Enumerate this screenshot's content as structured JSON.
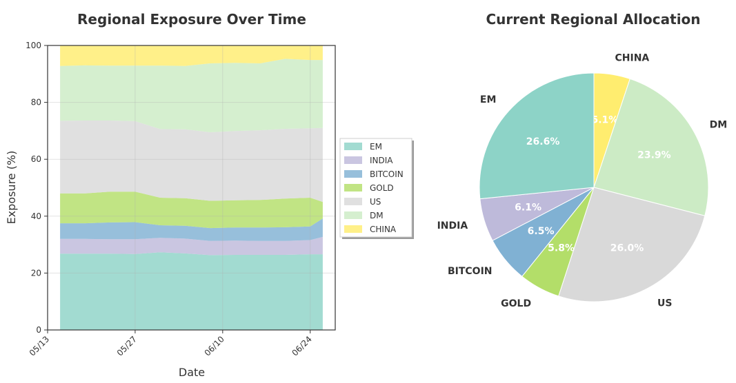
{
  "chart_data": [
    {
      "type": "area",
      "title": "Regional Exposure Over Time",
      "xlabel": "Date",
      "ylabel": "Exposure (%)",
      "ylim": [
        0,
        100
      ],
      "yticks": [
        "0",
        "20",
        "40",
        "60",
        "80",
        "100"
      ],
      "xticks": [
        "05/13",
        "05/27",
        "06/10",
        "06/24"
      ],
      "grid": true,
      "stacked": true,
      "legend_position": "right",
      "x": [
        "05/15",
        "05/19",
        "05/23",
        "05/27",
        "05/31",
        "06/04",
        "06/08",
        "06/12",
        "06/16",
        "06/20",
        "06/24",
        "06/26"
      ],
      "series": [
        {
          "name": "EM",
          "color": "#8dd3c7",
          "values": [
            26.8,
            26.8,
            26.8,
            26.7,
            27.3,
            26.9,
            26.3,
            26.4,
            26.4,
            26.4,
            26.6,
            26.6
          ]
        },
        {
          "name": "INDIA",
          "color": "#bebada",
          "values": [
            5.2,
            5.2,
            5.1,
            5.2,
            5.1,
            5.2,
            5.0,
            5.0,
            4.9,
            4.9,
            5.0,
            6.1
          ]
        },
        {
          "name": "BITCOIN",
          "color": "#80b1d3",
          "values": [
            5.5,
            5.5,
            5.9,
            6.0,
            4.4,
            4.5,
            4.5,
            4.6,
            4.7,
            4.8,
            4.8,
            6.5
          ]
        },
        {
          "name": "GOLD",
          "color": "#b3de69",
          "values": [
            10.5,
            10.5,
            10.8,
            10.7,
            9.7,
            9.7,
            9.6,
            9.6,
            9.7,
            10.1,
            10.1,
            5.8
          ]
        },
        {
          "name": "US",
          "color": "#d9d9d9",
          "values": [
            25.5,
            25.6,
            25.0,
            24.8,
            24.1,
            24.2,
            24.1,
            24.3,
            24.5,
            24.5,
            24.4,
            26.0
          ]
        },
        {
          "name": "DM",
          "color": "#ccebc5",
          "values": [
            19.3,
            19.4,
            19.3,
            19.5,
            22.3,
            22.3,
            24.2,
            24.0,
            23.5,
            24.6,
            24.0,
            23.9
          ]
        },
        {
          "name": "CHINA",
          "color": "#ffed6f",
          "values": [
            7.2,
            7.0,
            7.1,
            7.1,
            7.1,
            7.2,
            6.3,
            6.1,
            6.3,
            4.7,
            5.1,
            5.1
          ]
        }
      ]
    },
    {
      "type": "pie",
      "title": "Current Regional Allocation",
      "slices": [
        {
          "label": "CHINA",
          "value": 5.1,
          "pct": "5.1%",
          "color": "#ffed6f"
        },
        {
          "label": "DM",
          "value": 23.9,
          "pct": "23.9%",
          "color": "#ccebc5"
        },
        {
          "label": "US",
          "value": 26.0,
          "pct": "26.0%",
          "color": "#d9d9d9"
        },
        {
          "label": "GOLD",
          "value": 5.8,
          "pct": "5.8%",
          "color": "#b3de69"
        },
        {
          "label": "BITCOIN",
          "value": 6.5,
          "pct": "6.5%",
          "color": "#80b1d3"
        },
        {
          "label": "INDIA",
          "value": 6.1,
          "pct": "6.1%",
          "color": "#bebada"
        },
        {
          "label": "EM",
          "value": 26.6,
          "pct": "26.6%",
          "color": "#8dd3c7"
        }
      ]
    }
  ]
}
